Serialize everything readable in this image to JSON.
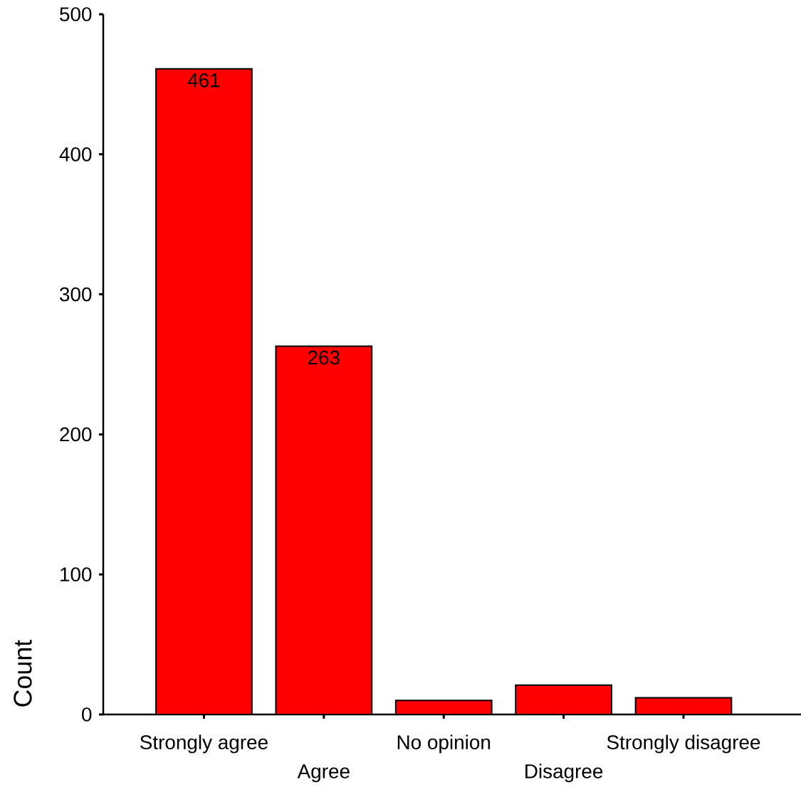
{
  "chart_data": {
    "type": "bar",
    "ylabel": "Count",
    "categories": [
      "Strongly agree",
      "Agree",
      "No opinion",
      "Disagree",
      "Strongly disagree"
    ],
    "values": [
      461,
      263,
      10,
      21,
      12
    ],
    "value_labels": [
      "461",
      "263",
      null,
      null,
      null
    ],
    "color": "#ff0000",
    "ylim": [
      0,
      500
    ],
    "yticks": [
      0,
      100,
      200,
      300,
      400,
      500
    ],
    "grid": false
  }
}
